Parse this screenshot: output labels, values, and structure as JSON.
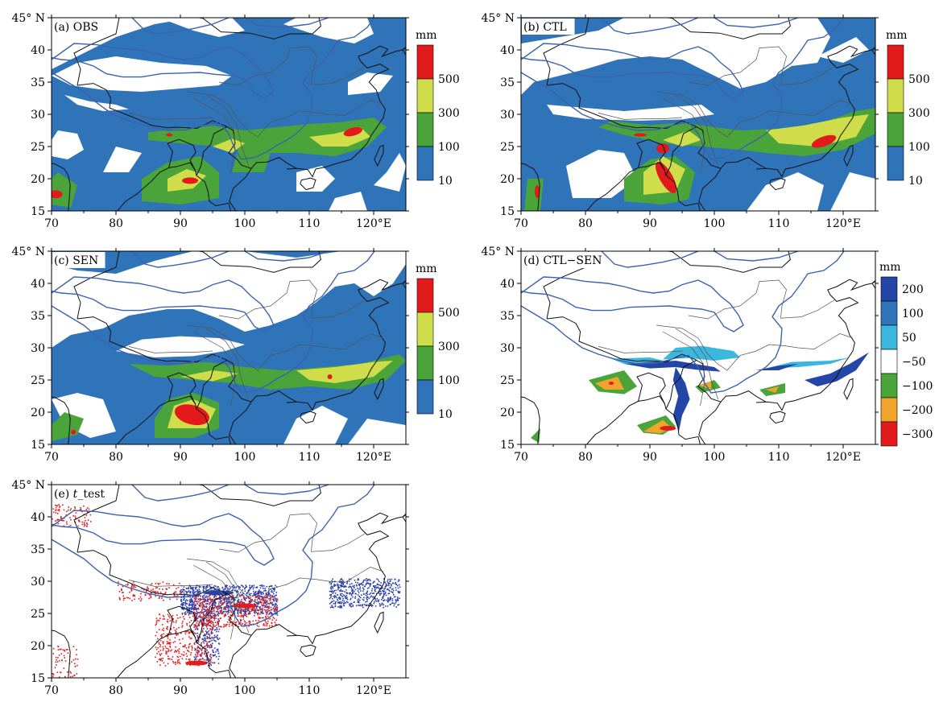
{
  "palette": {
    "blue": "#2f73b8",
    "green_light": "#7fc241",
    "green": "#4aa43a",
    "yellow": "#cfdd4a",
    "red": "#e31a1c",
    "navy": "#2446a6",
    "cyan": "#3bb7df",
    "orange": "#f0a42c",
    "line_blue": "#3a62b0",
    "tstat_red": "#e41c1c",
    "tstat_blue": "#2b3fa8"
  },
  "axes": {
    "x_ticks": [
      "70",
      "80",
      "90",
      "100",
      "110",
      "120°E"
    ],
    "y_ticks": [
      "45° N",
      "40",
      "35",
      "30",
      "25",
      "20",
      "15"
    ],
    "xlim": [
      70,
      125
    ],
    "ylim": [
      15,
      45
    ]
  },
  "panels": [
    {
      "id": "a",
      "label": "(a) OBS",
      "cbar": {
        "unit": "mm",
        "labels": [
          "500",
          "300",
          "100",
          "10"
        ],
        "colors": [
          "#e31a1c",
          "#cfdd4a",
          "#4aa43a",
          "#2f73b8"
        ]
      }
    },
    {
      "id": "b",
      "label": "(b) CTL",
      "cbar": {
        "unit": "mm",
        "labels": [
          "500",
          "300",
          "100",
          "10"
        ],
        "colors": [
          "#e31a1c",
          "#cfdd4a",
          "#4aa43a",
          "#2f73b8"
        ]
      }
    },
    {
      "id": "c",
      "label": "(c) SEN",
      "cbar": {
        "unit": "mm",
        "labels": [
          "500",
          "300",
          "100",
          "10"
        ],
        "colors": [
          "#e31a1c",
          "#cfdd4a",
          "#4aa43a",
          "#2f73b8"
        ]
      }
    },
    {
      "id": "d",
      "label": "(d) CTL−SEN",
      "cbar": {
        "unit": "mm",
        "labels": [
          "200",
          "100",
          "50",
          "−50",
          "−100",
          "−200",
          "−300"
        ],
        "colors": [
          "#2446a6",
          "#2f73b8",
          "#3bb7df",
          "#ffffff",
          "#4aa43a",
          "#f0a42c",
          "#e31a1c"
        ]
      }
    },
    {
      "id": "e",
      "label_prefix": "(e) ",
      "label_italic": "t",
      "label_suffix": "_test"
    }
  ]
}
